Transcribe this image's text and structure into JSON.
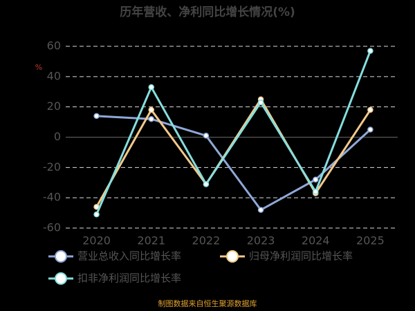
{
  "chart_data": {
    "type": "line",
    "title": "历年营收、净利同比增长情况(%)",
    "y_label": "%",
    "categories": [
      "2020",
      "2021",
      "2022",
      "2023",
      "2024",
      "2025"
    ],
    "series": [
      {
        "name": "营业总收入同比增长率",
        "color": "#8fa8d8",
        "values": [
          14,
          12,
          1,
          -48,
          -28,
          5
        ]
      },
      {
        "name": "归母净利润同比增长率",
        "color": "#f5c98a",
        "values": [
          -46,
          18,
          -31,
          25,
          -37,
          18
        ]
      },
      {
        "name": "扣非净利润同比增长率",
        "color": "#86dede",
        "values": [
          -51,
          33,
          -31,
          23,
          -36,
          57
        ]
      }
    ],
    "ylim": [
      -60,
      60
    ],
    "yticks": [
      -60,
      -40,
      -20,
      0,
      20,
      40,
      60
    ],
    "grid": true,
    "footer": "制图数据来自恒生聚源数据库"
  }
}
